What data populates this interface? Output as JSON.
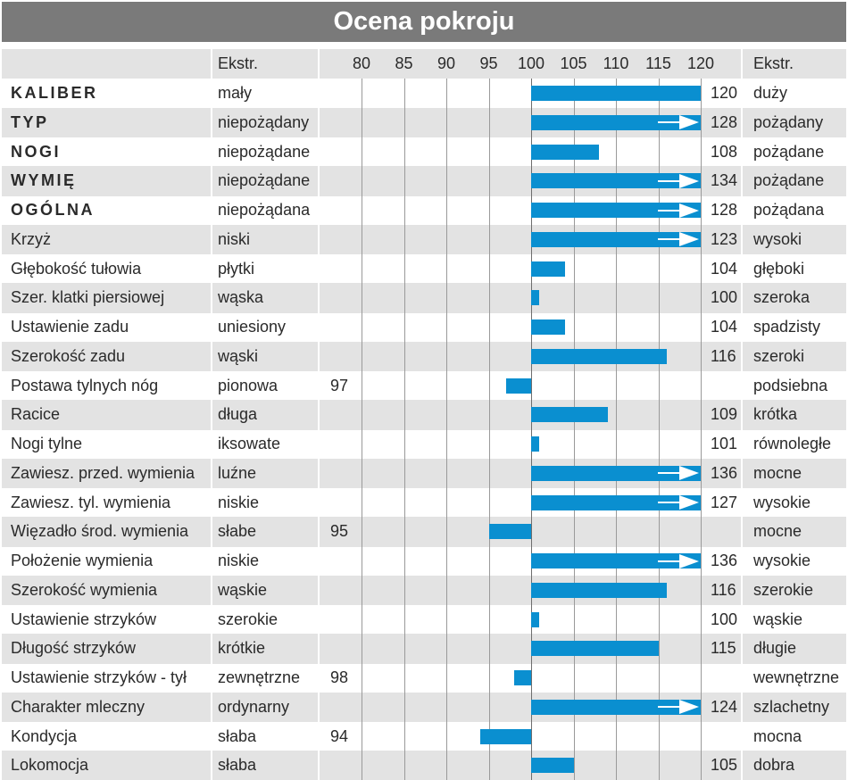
{
  "title": "Ocena pokroju",
  "header": {
    "ext_left": "Ekstr.",
    "ext_right": "Ekstr."
  },
  "chart_data": {
    "type": "bar",
    "axis_ticks": [
      "80",
      "85",
      "90",
      "95",
      "100",
      "105",
      "110",
      "115",
      "120"
    ],
    "xlim": [
      80,
      120
    ],
    "baseline": 100,
    "bar_color": "#0a8fd0",
    "rows": [
      {
        "name": "KALIBER",
        "bold": true,
        "ext_low": "mały",
        "ext_high": "duży",
        "value": 120,
        "value_label": "120",
        "side": "right",
        "overflow": false
      },
      {
        "name": "TYP",
        "bold": true,
        "ext_low": "niepożądany",
        "ext_high": "pożądany",
        "value": 128,
        "value_label": "128",
        "side": "right",
        "overflow": true
      },
      {
        "name": "NOGI",
        "bold": true,
        "ext_low": "niepożądane",
        "ext_high": "pożądane",
        "value": 108,
        "value_label": "108",
        "side": "right",
        "overflow": false
      },
      {
        "name": "WYMIĘ",
        "bold": true,
        "ext_low": "niepożądane",
        "ext_high": "pożądane",
        "value": 134,
        "value_label": "134",
        "side": "right",
        "overflow": true
      },
      {
        "name": "OGÓLNA",
        "bold": true,
        "ext_low": "niepożądana",
        "ext_high": "pożądana",
        "value": 128,
        "value_label": "128",
        "side": "right",
        "overflow": true
      },
      {
        "name": "Krzyż",
        "bold": false,
        "ext_low": "niski",
        "ext_high": "wysoki",
        "value": 123,
        "value_label": "123",
        "side": "right",
        "overflow": true
      },
      {
        "name": "Głębokość tułowia",
        "bold": false,
        "ext_low": "płytki",
        "ext_high": "głęboki",
        "value": 104,
        "value_label": "104",
        "side": "right",
        "overflow": false
      },
      {
        "name": "Szer. klatki piersiowej",
        "bold": false,
        "ext_low": "wąska",
        "ext_high": "szeroka",
        "value": 100,
        "value_label": "100",
        "side": "right",
        "overflow": false
      },
      {
        "name": "Ustawienie zadu",
        "bold": false,
        "ext_low": "uniesiony",
        "ext_high": "spadzisty",
        "value": 104,
        "value_label": "104",
        "side": "right",
        "overflow": false
      },
      {
        "name": "Szerokość zadu",
        "bold": false,
        "ext_low": "wąski",
        "ext_high": "szeroki",
        "value": 116,
        "value_label": "116",
        "side": "right",
        "overflow": false
      },
      {
        "name": "Postawa tylnych nóg",
        "bold": false,
        "ext_low": "pionowa",
        "ext_high": "podsiebna",
        "value": 97,
        "value_label": "97",
        "side": "left",
        "overflow": false
      },
      {
        "name": "Racice",
        "bold": false,
        "ext_low": "długa",
        "ext_high": "krótka",
        "value": 109,
        "value_label": "109",
        "side": "right",
        "overflow": false
      },
      {
        "name": "Nogi tylne",
        "bold": false,
        "ext_low": "iksowate",
        "ext_high": "równoległe",
        "value": 101,
        "value_label": "101",
        "side": "right",
        "overflow": false
      },
      {
        "name": "Zawiesz. przed. wymienia",
        "bold": false,
        "ext_low": "luźne",
        "ext_high": "mocne",
        "value": 136,
        "value_label": "136",
        "side": "right",
        "overflow": true
      },
      {
        "name": "Zawiesz. tyl. wymienia",
        "bold": false,
        "ext_low": "niskie",
        "ext_high": "wysokie",
        "value": 127,
        "value_label": "127",
        "side": "right",
        "overflow": true
      },
      {
        "name": "Więzadło środ. wymienia",
        "bold": false,
        "ext_low": "słabe",
        "ext_high": "mocne",
        "value": 95,
        "value_label": "95",
        "side": "left",
        "overflow": false
      },
      {
        "name": "Położenie wymienia",
        "bold": false,
        "ext_low": "niskie",
        "ext_high": "wysokie",
        "value": 136,
        "value_label": "136",
        "side": "right",
        "overflow": true
      },
      {
        "name": "Szerokość wymienia",
        "bold": false,
        "ext_low": "wąskie",
        "ext_high": "szerokie",
        "value": 116,
        "value_label": "116",
        "side": "right",
        "overflow": false
      },
      {
        "name": "Ustawienie strzyków",
        "bold": false,
        "ext_low": "szerokie",
        "ext_high": "wąskie",
        "value": 100,
        "value_label": "100",
        "side": "right",
        "overflow": false
      },
      {
        "name": "Długość strzyków",
        "bold": false,
        "ext_low": "krótkie",
        "ext_high": "długie",
        "value": 115,
        "value_label": "115",
        "side": "right",
        "overflow": false
      },
      {
        "name": "Ustawienie strzyków - tył",
        "bold": false,
        "ext_low": "zewnętrzne",
        "ext_high": "wewnętrzne",
        "value": 98,
        "value_label": "98",
        "side": "left",
        "overflow": false
      },
      {
        "name": "Charakter mleczny",
        "bold": false,
        "ext_low": "ordynarny",
        "ext_high": "szlachetny",
        "value": 124,
        "value_label": "124",
        "side": "right",
        "overflow": true
      },
      {
        "name": "Kondycja",
        "bold": false,
        "ext_low": "słaba",
        "ext_high": "mocna",
        "value": 94,
        "value_label": "94",
        "side": "left",
        "overflow": false
      },
      {
        "name": "Lokomocja",
        "bold": false,
        "ext_low": "słaba",
        "ext_high": "dobra",
        "value": 105,
        "value_label": "105",
        "side": "right",
        "overflow": false
      }
    ]
  }
}
